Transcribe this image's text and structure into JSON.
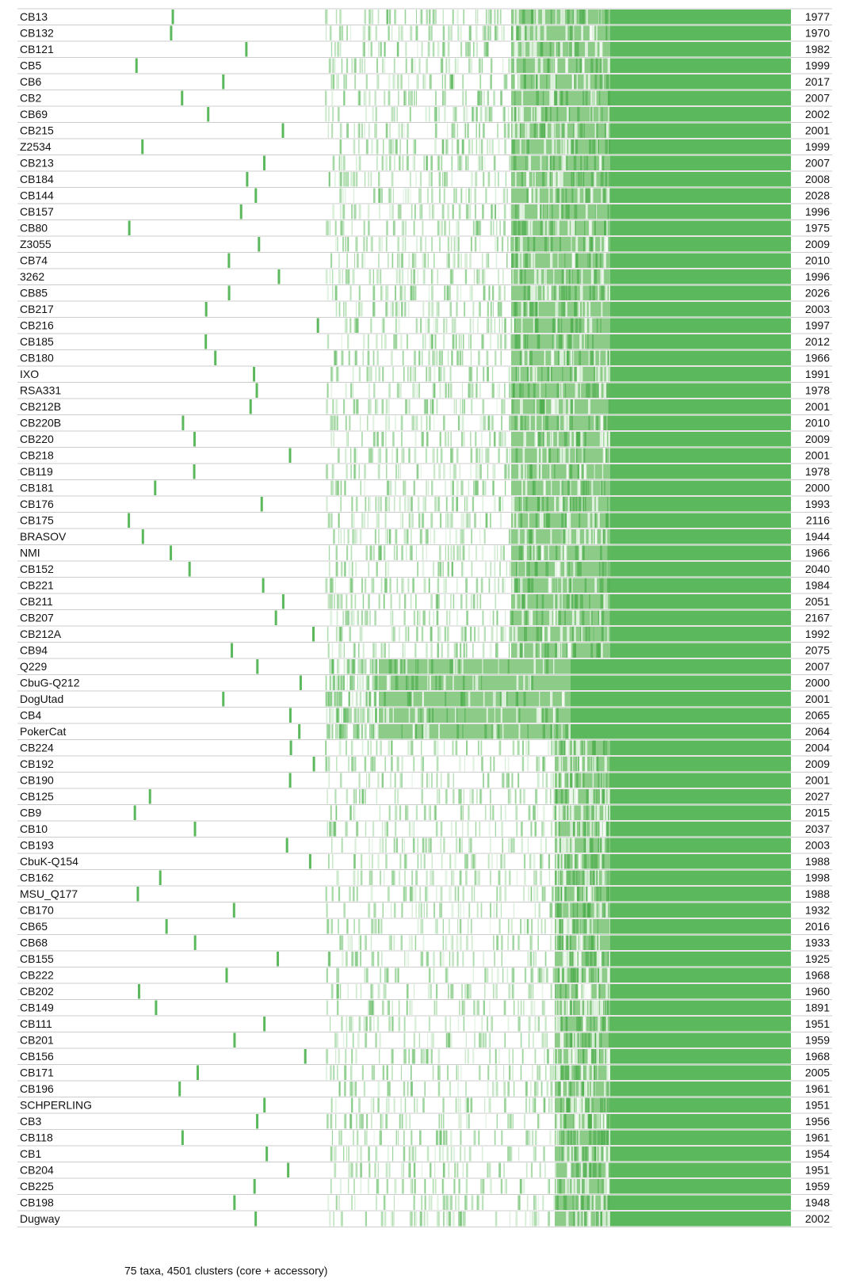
{
  "rows": [
    {
      "label": "CB13",
      "count": 1977
    },
    {
      "label": "CB132",
      "count": 1970
    },
    {
      "label": "CB121",
      "count": 1982
    },
    {
      "label": "CB5",
      "count": 1999
    },
    {
      "label": "CB6",
      "count": 2017
    },
    {
      "label": "CB2",
      "count": 2007
    },
    {
      "label": "CB69",
      "count": 2002
    },
    {
      "label": "CB215",
      "count": 2001
    },
    {
      "label": "Z2534",
      "count": 1999
    },
    {
      "label": "CB213",
      "count": 2007
    },
    {
      "label": "CB184",
      "count": 2008
    },
    {
      "label": "CB144",
      "count": 2028
    },
    {
      "label": "CB157",
      "count": 1996
    },
    {
      "label": "CB80",
      "count": 1975
    },
    {
      "label": "Z3055",
      "count": 2009
    },
    {
      "label": "CB74",
      "count": 2010
    },
    {
      "label": "3262",
      "count": 1996
    },
    {
      "label": "CB85",
      "count": 2026
    },
    {
      "label": "CB217",
      "count": 2003
    },
    {
      "label": "CB216",
      "count": 1997
    },
    {
      "label": "CB185",
      "count": 2012
    },
    {
      "label": "CB180",
      "count": 1966
    },
    {
      "label": "IXO",
      "count": 1991
    },
    {
      "label": "RSA331",
      "count": 1978
    },
    {
      "label": "CB212B",
      "count": 2001
    },
    {
      "label": "CB220B",
      "count": 2010
    },
    {
      "label": "CB220",
      "count": 2009
    },
    {
      "label": "CB218",
      "count": 2001
    },
    {
      "label": "CB119",
      "count": 1978
    },
    {
      "label": "CB181",
      "count": 2000
    },
    {
      "label": "CB176",
      "count": 1993
    },
    {
      "label": "CB175",
      "count": 2116
    },
    {
      "label": "BRASOV",
      "count": 1944
    },
    {
      "label": "NMI",
      "count": 1966
    },
    {
      "label": "CB152",
      "count": 2040
    },
    {
      "label": "CB221",
      "count": 1984
    },
    {
      "label": "CB211",
      "count": 2051
    },
    {
      "label": "CB207",
      "count": 2167
    },
    {
      "label": "CB212A",
      "count": 1992
    },
    {
      "label": "CB94",
      "count": 2075
    },
    {
      "label": "Q229",
      "count": 2007
    },
    {
      "label": "CbuG-Q212",
      "count": 2000
    },
    {
      "label": "DogUtad",
      "count": 2001
    },
    {
      "label": "CB4",
      "count": 2065
    },
    {
      "label": "PokerCat",
      "count": 2064
    },
    {
      "label": "CB224",
      "count": 2004
    },
    {
      "label": "CB192",
      "count": 2009
    },
    {
      "label": "CB190",
      "count": 2001
    },
    {
      "label": "CB125",
      "count": 2027
    },
    {
      "label": "CB9",
      "count": 2015
    },
    {
      "label": "CB10",
      "count": 2037
    },
    {
      "label": "CB193",
      "count": 2003
    },
    {
      "label": "CbuK-Q154",
      "count": 1988
    },
    {
      "label": "CB162",
      "count": 1998
    },
    {
      "label": "MSU_Q177",
      "count": 1988
    },
    {
      "label": "CB170",
      "count": 1932
    },
    {
      "label": "CB65",
      "count": 2016
    },
    {
      "label": "CB68",
      "count": 1933
    },
    {
      "label": "CB155",
      "count": 1925
    },
    {
      "label": "CB222",
      "count": 1968
    },
    {
      "label": "CB202",
      "count": 1960
    },
    {
      "label": "CB149",
      "count": 1891
    },
    {
      "label": "CB111",
      "count": 1951
    },
    {
      "label": "CB201",
      "count": 1959
    },
    {
      "label": "CB156",
      "count": 1968
    },
    {
      "label": "CB171",
      "count": 2005
    },
    {
      "label": "CB196",
      "count": 1961
    },
    {
      "label": "SCHPERLING",
      "count": 1951
    },
    {
      "label": "CB3",
      "count": 1956
    },
    {
      "label": "CB118",
      "count": 1961
    },
    {
      "label": "CB1",
      "count": 1954
    },
    {
      "label": "CB204",
      "count": 1951
    },
    {
      "label": "CB225",
      "count": 1959
    },
    {
      "label": "CB198",
      "count": 1948
    },
    {
      "label": "Dugway",
      "count": 2002
    }
  ],
  "footer": "75 taxa, 4501 clusters (core + accessory)"
}
